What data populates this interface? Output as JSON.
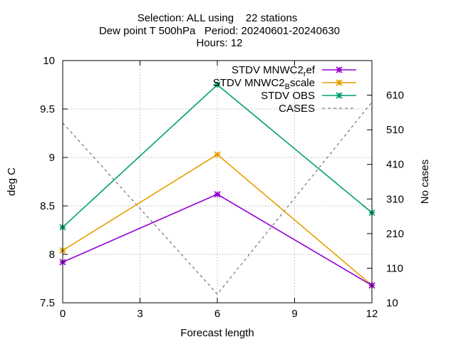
{
  "chart_data": {
    "type": "line",
    "title_lines": [
      "Selection: ALL using    22 stations",
      "Dew point T 500hPa   Period: 20240601-20240630",
      "Hours: 12"
    ],
    "xlabel": "Forecast length",
    "ylabel": "deg C",
    "y2label": "No cases",
    "x": [
      0,
      6,
      12
    ],
    "xlim": [
      0,
      12
    ],
    "xticks": [
      0,
      3,
      6,
      9,
      12
    ],
    "ylim": [
      7.5,
      10
    ],
    "yticks": [
      7.5,
      8,
      8.5,
      9,
      9.5,
      10
    ],
    "y2lim": [
      10,
      710
    ],
    "y2ticks": [
      10,
      110,
      210,
      310,
      410,
      510,
      610
    ],
    "grid": true,
    "legend_position": "top-right",
    "series": [
      {
        "name": "STDV MNWC2_ref",
        "label_main": "STDV MNWC2",
        "label_sub": "r",
        "label_rest": "ef",
        "values": [
          7.92,
          8.62,
          7.68
        ],
        "color": "#9400d3",
        "axis": "y1",
        "dashed": false,
        "marker": true
      },
      {
        "name": "STDV MNWC2_Bscale",
        "label_main": "STDV MNWC2",
        "label_sub": "B",
        "label_rest": "scale",
        "values": [
          8.04,
          9.03,
          7.68
        ],
        "color": "#e69f00",
        "axis": "y1",
        "dashed": false,
        "marker": true
      },
      {
        "name": "STDV OBS",
        "label_main": "STDV OBS",
        "label_sub": "",
        "label_rest": "",
        "values": [
          8.28,
          9.75,
          8.43
        ],
        "color": "#009e73",
        "axis": "y1",
        "dashed": false,
        "marker": true
      },
      {
        "name": "CASES",
        "label_main": "CASES",
        "label_sub": "",
        "label_rest": "",
        "values": [
          530,
          35,
          590
        ],
        "color": "#808080",
        "axis": "y2",
        "dashed": true,
        "marker": false
      }
    ]
  }
}
